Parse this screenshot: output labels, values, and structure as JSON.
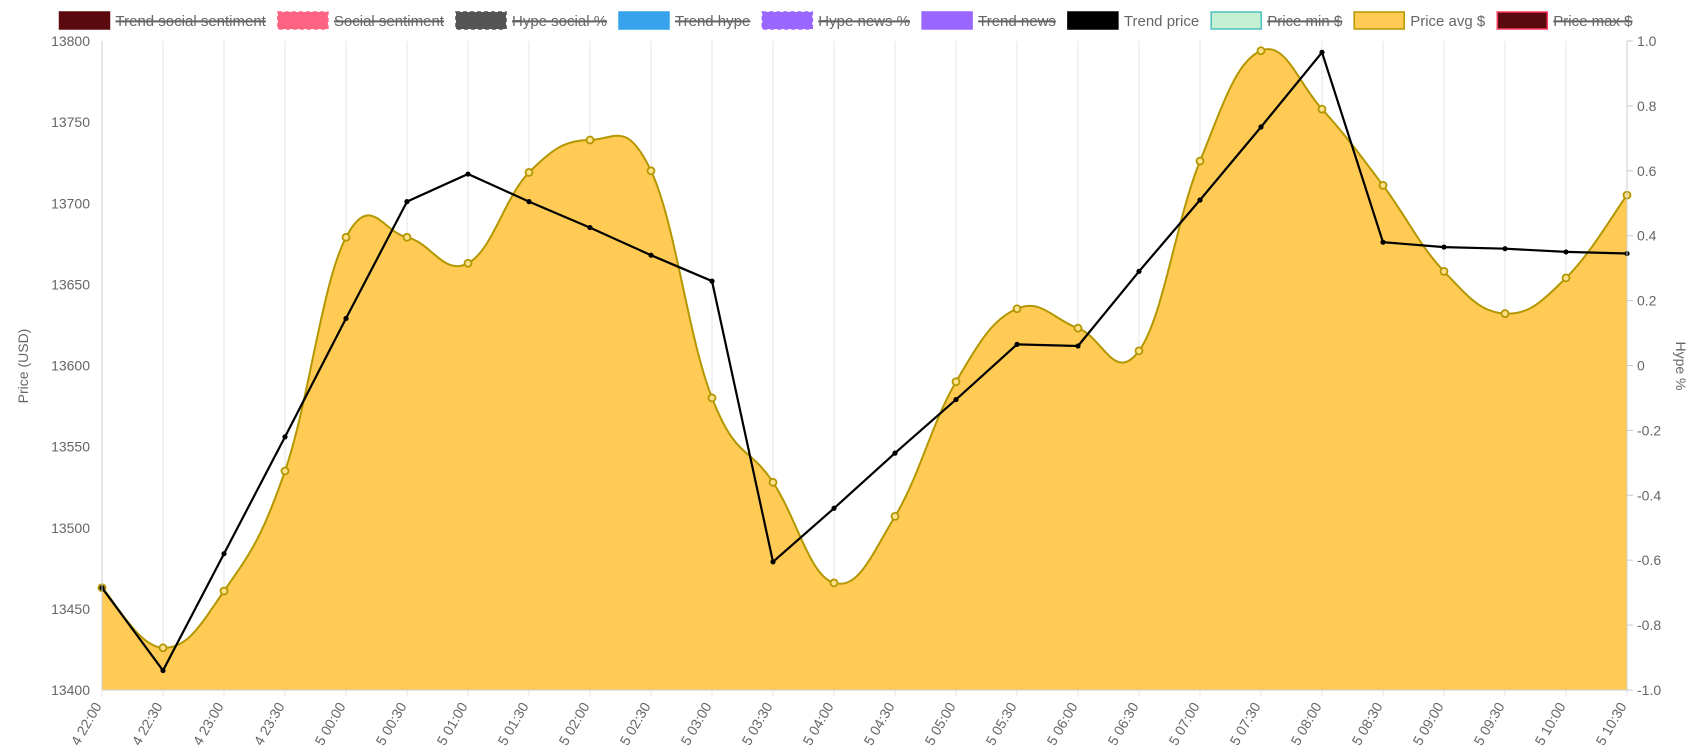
{
  "chart_data": {
    "type": "line",
    "legend": [
      {
        "label": "Trend social sentiment",
        "fill": "#5a0a0f",
        "stroke": "#5a0a0f",
        "dashed": false,
        "hidden": true
      },
      {
        "label": "Social sentiment",
        "fill": "#ff6384",
        "stroke": "#ff6384",
        "dashed": true,
        "hidden": true
      },
      {
        "label": "Hype social %",
        "fill": "#555555",
        "stroke": "#555555",
        "dashed": true,
        "hidden": true
      },
      {
        "label": "Trend hype",
        "fill": "#36a2eb",
        "stroke": "#36a2eb",
        "dashed": false,
        "hidden": true
      },
      {
        "label": "Hype news %",
        "fill": "#9966ff",
        "stroke": "#9966ff",
        "dashed": true,
        "hidden": true
      },
      {
        "label": "Trend news",
        "fill": "#9966ff",
        "stroke": "#9966ff",
        "dashed": false,
        "hidden": true
      },
      {
        "label": "Trend price",
        "fill": "#000000",
        "stroke": "#000000",
        "dashed": false,
        "hidden": false
      },
      {
        "label": "Price min $",
        "fill": "#c6f0d3",
        "stroke": "#4bc0c0",
        "dashed": false,
        "hidden": true
      },
      {
        "label": "Price avg $",
        "fill": "#ffcb55",
        "stroke": "#b39700",
        "dashed": false,
        "hidden": false
      },
      {
        "label": "Price max $",
        "fill": "#5a0a0f",
        "stroke": "#ff3b5c",
        "dashed": false,
        "hidden": true
      }
    ],
    "categories": [
      "4 22:00",
      "4 22:30",
      "4 23:00",
      "4 23:30",
      "5 00:00",
      "5 00:30",
      "5 01:00",
      "5 01:30",
      "5 02:00",
      "5 02:30",
      "5 03:00",
      "5 03:30",
      "5 04:00",
      "5 04:30",
      "5 05:00",
      "5 05:30",
      "5 06:00",
      "5 06:30",
      "5 07:00",
      "5 07:30",
      "5 08:00",
      "5 08:30",
      "5 09:00",
      "5 09:30",
      "5 10:00",
      "5 10:30"
    ],
    "series": [
      {
        "name": "Price avg $",
        "type": "area",
        "axis": "left",
        "color": "#b39700",
        "fill": "#ffcb55",
        "values": [
          13463,
          13426,
          13461,
          13535,
          13679,
          13679,
          13663,
          13719,
          13739,
          13720,
          13580,
          13528,
          13466,
          13507,
          13590,
          13635,
          13623,
          13609,
          13726,
          13794,
          13758,
          13711,
          13658,
          13632,
          13654,
          13705
        ]
      },
      {
        "name": "Trend price",
        "type": "line",
        "axis": "left",
        "color": "#000000",
        "values": [
          13463,
          13412,
          13484,
          13556,
          13629,
          13701,
          13718,
          13701,
          13685,
          13668,
          13652,
          13479,
          13512,
          13546,
          13579,
          13613,
          13612,
          13658,
          13702,
          13747,
          13793,
          13676,
          13673,
          13672,
          13670,
          13669
        ]
      }
    ],
    "y_left": {
      "label": "Price (USD)",
      "min": 13400,
      "max": 13800,
      "ticks": [
        13400,
        13450,
        13500,
        13550,
        13600,
        13650,
        13700,
        13750,
        13800
      ]
    },
    "y_right": {
      "label": "Hype %",
      "min": -1,
      "max": 1,
      "ticks": [
        "-1.0",
        "-0.8",
        "-0.6",
        "-0.4",
        "-0.2",
        "0",
        "0.2",
        "0.4",
        "0.6",
        "0.8",
        "1.0"
      ]
    },
    "grid": "vertical",
    "legend_position": "top"
  }
}
